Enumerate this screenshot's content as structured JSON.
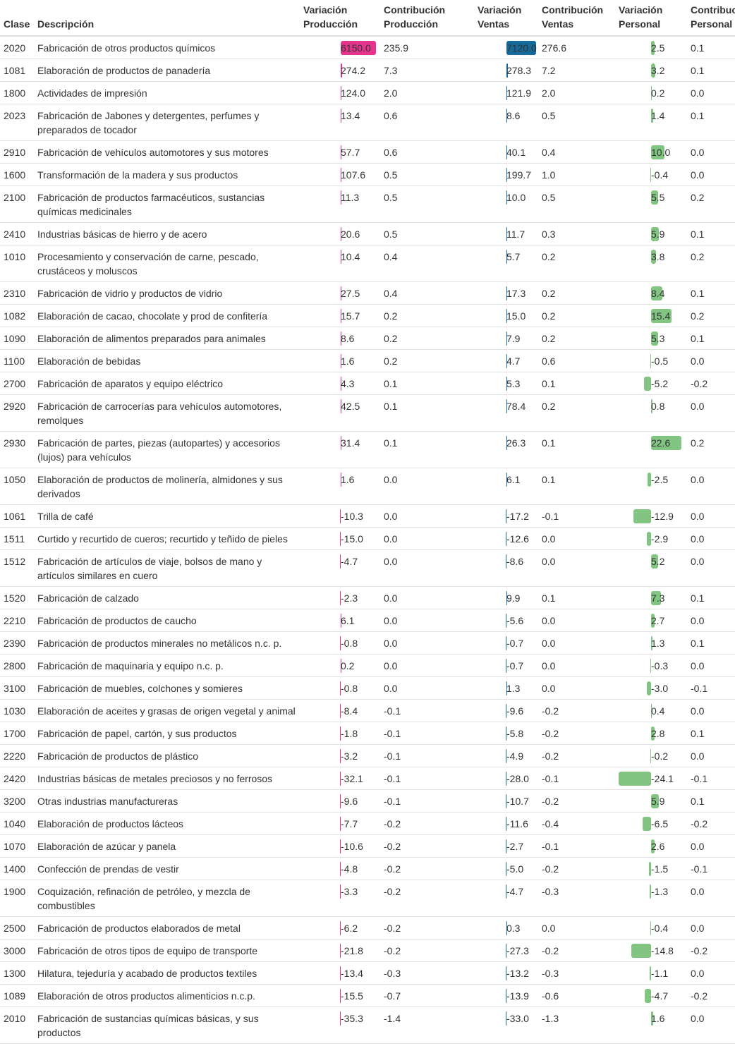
{
  "table": {
    "header": [
      "Clase",
      "Descripción",
      "Variación Producción",
      "Contribución Producción",
      "Variación Ventas",
      "Contribución Ventas",
      "Variación Personal",
      "Contribución Personal"
    ],
    "rows": [
      [
        "2020",
        "Fabricación de otros productos químicos",
        "6150.0",
        "235.9",
        "7120.0",
        "276.6",
        "2.5",
        "0.1"
      ],
      [
        "1081",
        "Elaboración de productos de panadería",
        "274.2",
        "7.3",
        "278.3",
        "7.2",
        "3.2",
        "0.1"
      ],
      [
        "1800",
        "Actividades de impresión",
        "124.0",
        "2.0",
        "121.9",
        "2.0",
        "0.2",
        "0.0"
      ],
      [
        "2023",
        "Fabricación de Jabones y detergentes, perfumes y preparados de tocador",
        "13.4",
        "0.6",
        "8.6",
        "0.5",
        "1.4",
        "0.1"
      ],
      [
        "2910",
        "Fabricación de vehículos automotores y sus motores",
        "57.7",
        "0.6",
        "40.1",
        "0.4",
        "10.0",
        "0.0"
      ],
      [
        "1600",
        "Transformación de la madera y sus productos",
        "107.6",
        "0.5",
        "199.7",
        "1.0",
        "-0.4",
        "0.0"
      ],
      [
        "2100",
        "Fabricación de productos farmacéuticos, sustancias químicas medicinales",
        "11.3",
        "0.5",
        "10.0",
        "0.5",
        "5.5",
        "0.2"
      ],
      [
        "2410",
        "Industrias básicas de hierro y de acero",
        "20.6",
        "0.5",
        "11.7",
        "0.3",
        "5.9",
        "0.1"
      ],
      [
        "1010",
        "Procesamiento y conservación de carne, pescado, crustáceos y moluscos",
        "10.4",
        "0.4",
        "5.7",
        "0.2",
        "3.8",
        "0.2"
      ],
      [
        "2310",
        "Fabricación de vidrio y productos de vidrio",
        "27.5",
        "0.4",
        "17.3",
        "0.2",
        "8.4",
        "0.1"
      ],
      [
        "1082",
        "Elaboración de cacao, chocolate y prod de confitería",
        "15.7",
        "0.2",
        "15.0",
        "0.2",
        "15.4",
        "0.2"
      ],
      [
        "1090",
        "Elaboración de alimentos preparados para animales",
        "8.6",
        "0.2",
        "7.9",
        "0.2",
        "5.3",
        "0.1"
      ],
      [
        "1100",
        "Elaboración de bebidas",
        "1.6",
        "0.2",
        "4.7",
        "0.6",
        "-0.5",
        "0.0"
      ],
      [
        "2700",
        "Fabricación de aparatos y equipo eléctrico",
        "4.3",
        "0.1",
        "5.3",
        "0.1",
        "-5.2",
        "-0.2"
      ],
      [
        "2920",
        "Fabricación de carrocerías para vehículos automotores, remolques",
        "42.5",
        "0.1",
        "78.4",
        "0.2",
        "0.8",
        "0.0"
      ],
      [
        "2930",
        "Fabricación de partes, piezas (autopartes) y accesorios (lujos) para vehículos",
        "31.4",
        "0.1",
        "26.3",
        "0.1",
        "22.6",
        "0.2"
      ],
      [
        "1050",
        "Elaboración de productos de molinería, almidones y sus derivados",
        "1.6",
        "0.0",
        "6.1",
        "0.1",
        "-2.5",
        "0.0"
      ],
      [
        "1061",
        "Trilla de café",
        "-10.3",
        "0.0",
        "-17.2",
        "-0.1",
        "-12.9",
        "0.0"
      ],
      [
        "1511",
        "Curtido y recurtido de cueros; recurtido y teñido de pieles",
        "-15.0",
        "0.0",
        "-12.6",
        "0.0",
        "-2.9",
        "0.0"
      ],
      [
        "1512",
        "Fabricación de artículos de viaje, bolsos de mano y artículos similares en cuero",
        "-4.7",
        "0.0",
        "-8.6",
        "0.0",
        "5.2",
        "0.0"
      ],
      [
        "1520",
        "Fabricación de calzado",
        "-2.3",
        "0.0",
        "9.9",
        "0.1",
        "7.3",
        "0.1"
      ],
      [
        "2210",
        "Fabricación de productos de caucho",
        "6.1",
        "0.0",
        "-5.6",
        "0.0",
        "2.7",
        "0.0"
      ],
      [
        "2390",
        "Fabricación de productos minerales no metálicos n.c. p.",
        "-0.8",
        "0.0",
        "-0.7",
        "0.0",
        "1.3",
        "0.1"
      ],
      [
        "2800",
        "Fabricación de maquinaria y equipo n.c. p.",
        "0.2",
        "0.0",
        "-0.7",
        "0.0",
        "-0.3",
        "0.0"
      ],
      [
        "3100",
        "Fabricación de muebles, colchones y somieres",
        "-0.8",
        "0.0",
        "1.3",
        "0.0",
        "-3.0",
        "-0.1"
      ],
      [
        "1030",
        "Elaboración de aceites y grasas de origen vegetal y animal",
        "-8.4",
        "-0.1",
        "-9.6",
        "-0.2",
        "0.4",
        "0.0"
      ],
      [
        "1700",
        "Fabricación de papel, cartón, y sus productos",
        "-1.8",
        "-0.1",
        "-5.8",
        "-0.2",
        "2.8",
        "0.1"
      ],
      [
        "2220",
        "Fabricación de productos de plástico",
        "-3.2",
        "-0.1",
        "-4.9",
        "-0.2",
        "-0.2",
        "0.0"
      ],
      [
        "2420",
        "Industrias básicas de metales preciosos y no ferrosos",
        "-32.1",
        "-0.1",
        "-28.0",
        "-0.1",
        "-24.1",
        "-0.1"
      ],
      [
        "3200",
        "Otras industrias manufactureras",
        "-9.6",
        "-0.1",
        "-10.7",
        "-0.2",
        "5.9",
        "0.1"
      ],
      [
        "1040",
        "Elaboración de productos lácteos",
        "-7.7",
        "-0.2",
        "-11.6",
        "-0.4",
        "-6.5",
        "-0.2"
      ],
      [
        "1070",
        "Elaboración de azúcar y panela",
        "-10.6",
        "-0.2",
        "-2.7",
        "-0.1",
        "2.6",
        "0.0"
      ],
      [
        "1400",
        "Confección de prendas de vestir",
        "-4.8",
        "-0.2",
        "-5.0",
        "-0.2",
        "-1.5",
        "-0.1"
      ],
      [
        "1900",
        "Coquización, refinación de petróleo, y mezcla de combustibles",
        "-3.3",
        "-0.2",
        "-4.7",
        "-0.3",
        "-1.3",
        "0.0"
      ],
      [
        "2500",
        "Fabricación de productos elaborados de metal",
        "-6.2",
        "-0.2",
        "0.3",
        "0.0",
        "-0.4",
        "0.0"
      ],
      [
        "3000",
        "Fabricación de otros tipos de equipo de transporte",
        "-21.8",
        "-0.2",
        "-27.3",
        "-0.2",
        "-14.8",
        "-0.2"
      ],
      [
        "1300",
        "Hilatura, tejeduría y acabado de productos textiles",
        "-13.4",
        "-0.3",
        "-13.2",
        "-0.3",
        "-1.1",
        "0.0"
      ],
      [
        "1089",
        "Elaboración de otros productos alimenticios n.c.p.",
        "-15.5",
        "-0.7",
        "-13.9",
        "-0.6",
        "-4.7",
        "-0.2"
      ],
      [
        "2010",
        "Fabricación de sustancias químicas básicas, y sus productos",
        "-35.3",
        "-1.4",
        "-33.0",
        "-1.3",
        "1.6",
        "0.0"
      ]
    ]
  }
}
